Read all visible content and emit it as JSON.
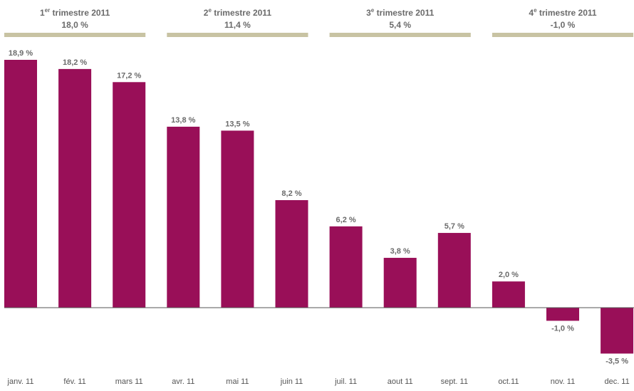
{
  "chart_data": {
    "type": "bar",
    "categories": [
      "janv. 11",
      "fév. 11",
      "mars 11",
      "avr. 11",
      "mai 11",
      "juin 11",
      "juil. 11",
      "aout 11",
      "sept. 11",
      "oct.11",
      "nov. 11",
      "dec. 11"
    ],
    "values": [
      18.9,
      18.2,
      17.2,
      13.8,
      13.5,
      8.2,
      6.2,
      3.8,
      5.7,
      2.0,
      -1.0,
      -3.5
    ],
    "data_labels": [
      "18,9 %",
      "18,2 %",
      "17,2 %",
      "13,8 %",
      "13,5 %",
      "8,2 %",
      "6,2 %",
      "3,8 %",
      "5,7 %",
      "2,0 %",
      "-1,0 %",
      "-3,5 %"
    ],
    "ylim": [
      -3.5,
      18.9
    ],
    "grid": false,
    "legend": "none",
    "colors": {
      "bar": "#990f58",
      "quarter_band": "#c8c3a3",
      "axis": "#555555",
      "text": "#6b6b6b"
    },
    "quarters": [
      {
        "num": "1",
        "sup": "er",
        "title": " trimestre 2011",
        "value": "18,0 %",
        "months": [
          0,
          1,
          2
        ]
      },
      {
        "num": "2",
        "sup": "e",
        "title": " trimestre 2011",
        "value": "11,4 %",
        "months": [
          3,
          4,
          5
        ]
      },
      {
        "num": "3",
        "sup": "e",
        "title": " trimestre 2011",
        "value": "5,4 %",
        "months": [
          6,
          7,
          8
        ]
      },
      {
        "num": "4",
        "sup": "e",
        "title": " trimestre 2011",
        "value": "-1,0 %",
        "months": [
          9,
          10,
          11
        ]
      }
    ]
  }
}
